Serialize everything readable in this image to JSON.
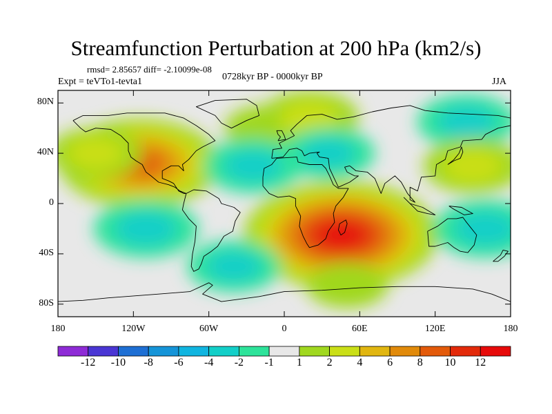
{
  "title": "Streamfunction Perturbation at 200 hPa (km2/s)",
  "stats": "rmsd= 2.85657 diff= -2.10099e-08",
  "experiment": "Expt = teVTo1-tevta1",
  "period": "0728kyr BP - 0000kyr BP",
  "season": "JJA",
  "map": {
    "lat_ticks": [
      {
        "lat": 80,
        "label": "80N"
      },
      {
        "lat": 40,
        "label": "40N"
      },
      {
        "lat": 0,
        "label": "0"
      },
      {
        "lat": -40,
        "label": "40S"
      },
      {
        "lat": -80,
        "label": "80S"
      }
    ],
    "lon_ticks": [
      {
        "lon": -180,
        "label": "180"
      },
      {
        "lon": -120,
        "label": "120W"
      },
      {
        "lon": -60,
        "label": "60W"
      },
      {
        "lon": 0,
        "label": "0"
      },
      {
        "lon": 60,
        "label": "60E"
      },
      {
        "lon": 120,
        "label": "120E"
      },
      {
        "lon": 180,
        "label": "180"
      }
    ],
    "lon_range": [
      -180,
      180
    ],
    "lat_range": [
      -90,
      90
    ],
    "features": [
      {
        "name": "north-america-positive-center",
        "lon": -115,
        "lat": 32,
        "value": 9
      },
      {
        "name": "north-pacific-positive",
        "lon": -150,
        "lat": 40,
        "value": 3
      },
      {
        "name": "north-atlantic-positive",
        "lon": -15,
        "lat": 60,
        "value": 2
      },
      {
        "name": "eurasia-positive",
        "lon": 20,
        "lat": 68,
        "value": 3.5
      },
      {
        "name": "north-africa-negative",
        "lon": -25,
        "lat": 30,
        "value": -3.5
      },
      {
        "name": "asia-negative",
        "lon": 35,
        "lat": 40,
        "value": -3
      },
      {
        "name": "east-asia-negative",
        "lon": 145,
        "lat": 65,
        "value": -3.5
      },
      {
        "name": "western-pacific-positive",
        "lon": 150,
        "lat": 30,
        "value": 3.5
      },
      {
        "name": "southern-africa-positive-center",
        "lon": 45,
        "lat": -25,
        "value": 12
      },
      {
        "name": "south-pacific-negative",
        "lon": -110,
        "lat": -20,
        "value": -4
      },
      {
        "name": "south-atlantic-negative",
        "lon": -40,
        "lat": -50,
        "value": -3
      },
      {
        "name": "southern-indian-negative",
        "lon": 160,
        "lat": -20,
        "value": -4
      },
      {
        "name": "southern-ocean-positive",
        "lon": 50,
        "lat": -65,
        "value": 2
      }
    ]
  },
  "colorbar": {
    "labels": [
      "-12",
      "-10",
      "-8",
      "-6",
      "-4",
      "-2",
      "-1",
      "1",
      "2",
      "4",
      "6",
      "8",
      "10",
      "12"
    ],
    "colors": [
      "#8e2bd6",
      "#4a36d4",
      "#1e6fd4",
      "#1594d8",
      "#10b5e0",
      "#12cfc8",
      "#2de39a",
      "#e8e8e8",
      "#a0d81f",
      "#cadf17",
      "#e1b610",
      "#e18a0a",
      "#e35a0a",
      "#e32a0a",
      "#e70a0a"
    ]
  }
}
